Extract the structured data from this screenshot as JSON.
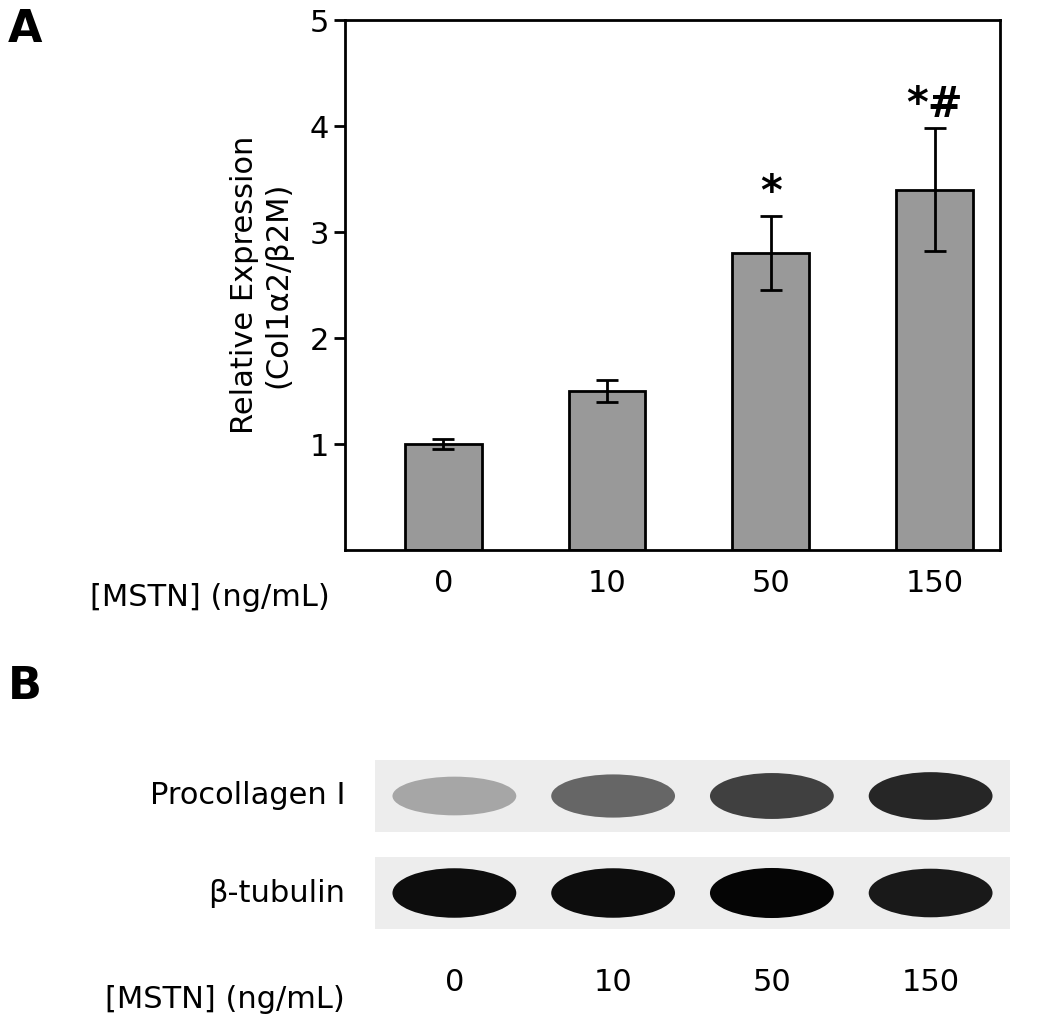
{
  "chart_data": [
    {
      "type": "bar",
      "title": "A",
      "ylabel": "Relative Expression\n(Col1α2/β2M)",
      "xlabel": "[MSTN] (ng/mL)",
      "categories": [
        "0",
        "10",
        "50",
        "150"
      ],
      "values": [
        1.0,
        1.5,
        2.8,
        3.4
      ],
      "error": [
        0.05,
        0.1,
        0.35,
        0.58
      ],
      "annotations": [
        null,
        null,
        "*",
        "*#"
      ],
      "color": "#999999",
      "ylim": [
        0,
        5
      ],
      "yticks": [
        1,
        2,
        3,
        4,
        5
      ],
      "grid": false
    },
    {
      "type": "blot",
      "title": "B",
      "xlabel": "[MSTN] (ng/mL)",
      "categories": [
        "0",
        "10",
        "50",
        "150"
      ],
      "series": [
        {
          "name": "Procollagen I",
          "values": [
            0.35,
            0.6,
            0.75,
            0.85
          ]
        },
        {
          "name": "β-tubulin",
          "values": [
            0.95,
            0.95,
            0.98,
            0.9
          ]
        }
      ]
    }
  ]
}
